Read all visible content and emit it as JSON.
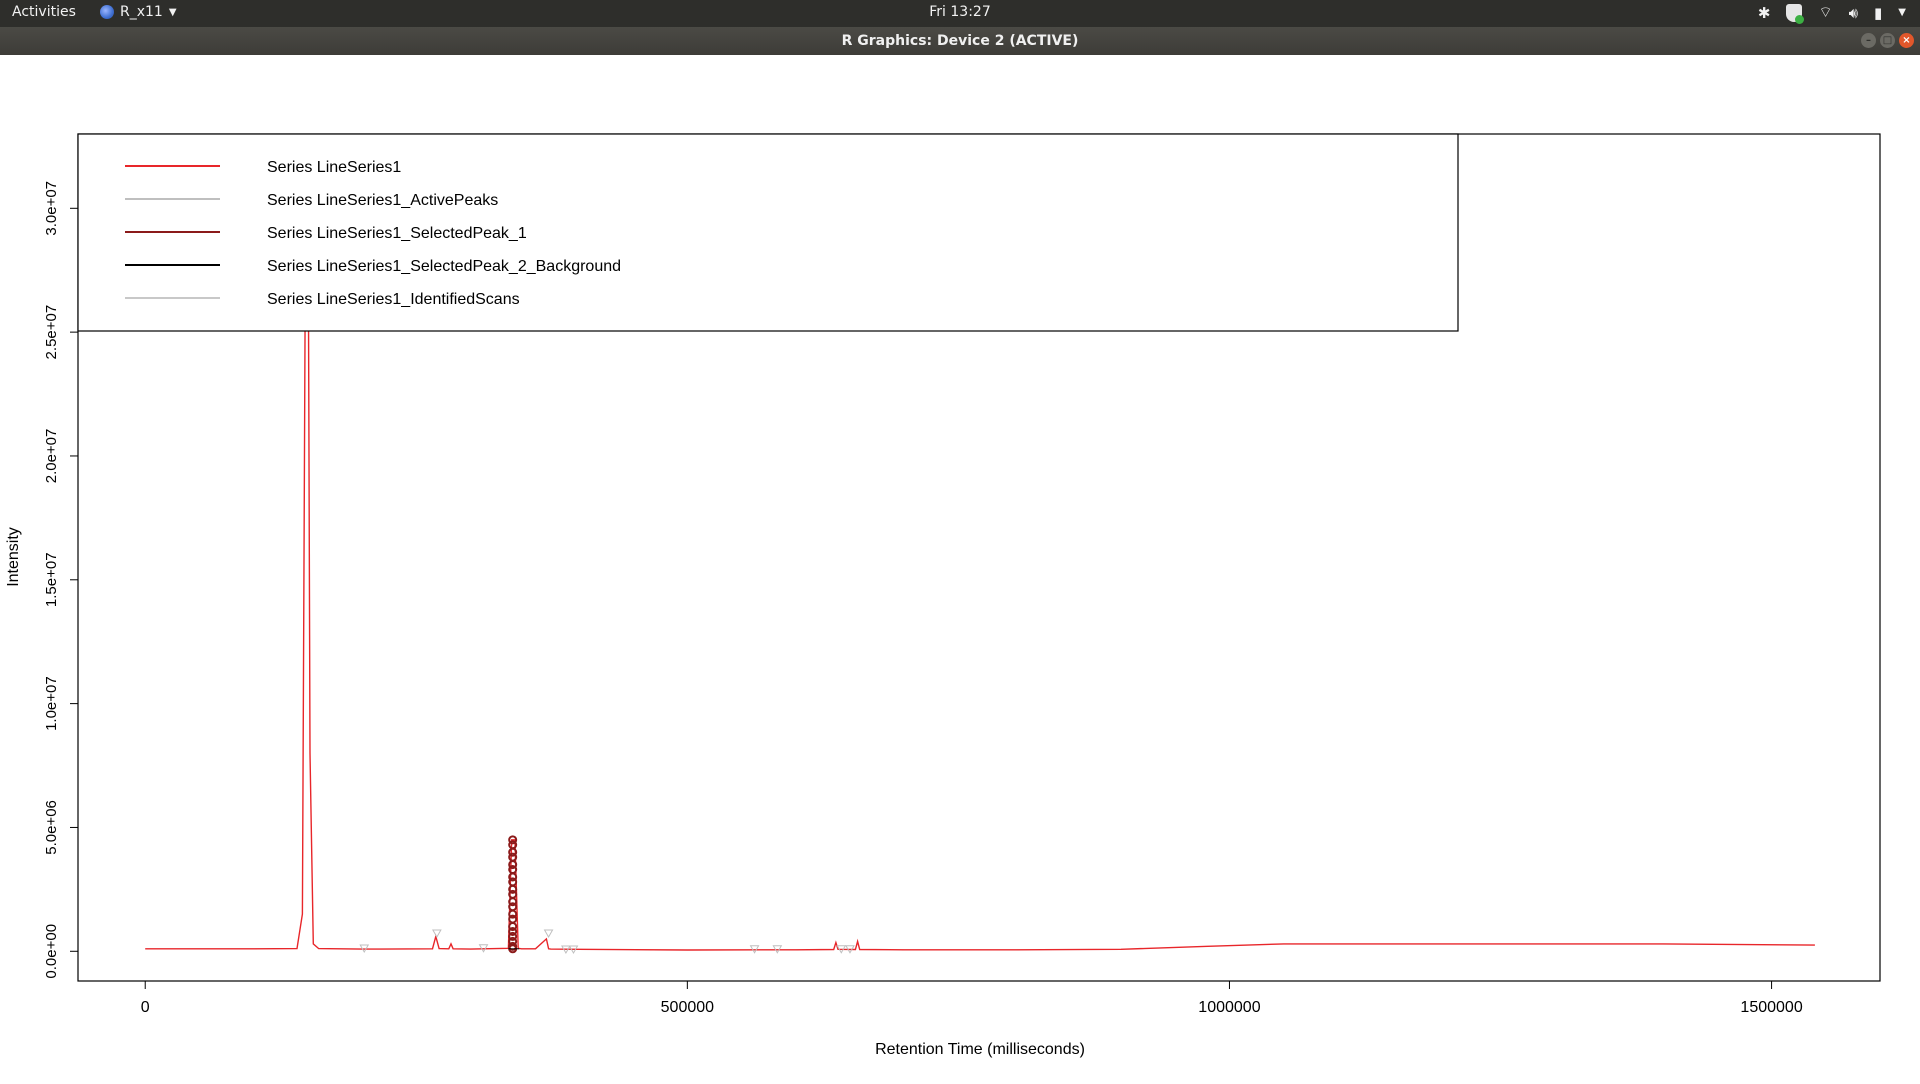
{
  "topbar": {
    "activities": "Activities",
    "app_name": "R_x11",
    "clock": "Fri 13:27",
    "tray_icons": [
      "bluetooth-icon",
      "shield-icon",
      "wifi-icon",
      "volume-icon",
      "battery-icon",
      "chevron-down-icon"
    ]
  },
  "window": {
    "title": "R Graphics: Device 2 (ACTIVE)"
  },
  "colors": {
    "main_series": "#e8262a",
    "active_peaks": "#bfbfbf",
    "selected_peak": "#8b1a1a",
    "background": "#000000",
    "identified_scans": "#c8c8c8"
  },
  "chart_data": {
    "type": "line",
    "title": "",
    "xlabel": "Retention Time (milliseconds)",
    "ylabel": "Intensity",
    "xlim": [
      -62000,
      1600000
    ],
    "ylim": [
      -1200000,
      33000000
    ],
    "x_ticks": [
      0,
      500000,
      1000000,
      1500000
    ],
    "x_tick_labels": [
      "0",
      "500000",
      "1000000",
      "1500000"
    ],
    "y_ticks": [
      0,
      5000000,
      10000000,
      15000000,
      20000000,
      25000000,
      30000000
    ],
    "y_tick_labels": [
      "0.0e+00",
      "5.0e+06",
      "1.0e+07",
      "1.5e+07",
      "2.0e+07",
      "2.5e+07",
      "3.0e+07"
    ],
    "legend_position": "top-left",
    "legend": [
      "Series LineSeries1",
      "Series LineSeries1_ActivePeaks",
      "Series LineSeries1_SelectedPeak_1",
      "Series LineSeries1_SelectedPeak_2_Background",
      "Series LineSeries1_IdentifiedScans"
    ],
    "series": [
      {
        "name": "Series LineSeries1",
        "x": [
          0,
          100000,
          140000,
          145000,
          148000,
          150000,
          152000,
          155000,
          160000,
          200000,
          265000,
          268000,
          271000,
          280000,
          282000,
          284000,
          300000,
          335000,
          338000,
          341000,
          344000,
          347000,
          360000,
          370000,
          372000,
          374000,
          400000,
          500000,
          600000,
          635000,
          637000,
          639000,
          655000,
          657000,
          659000,
          700000,
          800000,
          900000,
          980000,
          1050000,
          1200000,
          1400000,
          1540000
        ],
        "y": [
          100000,
          100000,
          110000,
          1500000,
          31000000,
          33000000,
          8000000,
          300000,
          110000,
          90000,
          100000,
          600000,
          110000,
          100000,
          300000,
          100000,
          90000,
          120000,
          4500000,
          4500000,
          120000,
          100000,
          100000,
          500000,
          100000,
          90000,
          80000,
          50000,
          60000,
          70000,
          350000,
          80000,
          70000,
          400000,
          70000,
          60000,
          60000,
          80000,
          200000,
          300000,
          300000,
          300000,
          250000
        ]
      },
      {
        "name": "Series LineSeries1_ActivePeaks",
        "x": [
          202000,
          269000,
          312000,
          372000,
          388000,
          395000,
          562000,
          583000,
          642000,
          650000
        ],
        "y": [
          90000,
          700000,
          100000,
          700000,
          50000,
          50000,
          60000,
          60000,
          60000,
          60000
        ]
      },
      {
        "name": "Series LineSeries1_SelectedPeak_1",
        "x": [
          338000,
          338000,
          338000,
          338000,
          338000,
          338000,
          338000,
          338000,
          338000,
          338000,
          338000,
          338000,
          338000,
          338000,
          338000,
          338000,
          338000,
          338000,
          338000,
          338000
        ],
        "y": [
          4500000,
          4300000,
          4000000,
          3800000,
          3500000,
          3300000,
          3000000,
          2800000,
          2500000,
          2300000,
          2000000,
          1800000,
          1500000,
          1300000,
          1000000,
          800000,
          600000,
          400000,
          200000,
          100000
        ]
      },
      {
        "name": "Series LineSeries1_SelectedPeak_2_Background",
        "x": [
          335000,
          345000
        ],
        "y": [
          100000,
          100000
        ]
      },
      {
        "name": "Series LineSeries1_IdentifiedScans",
        "x": [],
        "y": []
      }
    ]
  }
}
